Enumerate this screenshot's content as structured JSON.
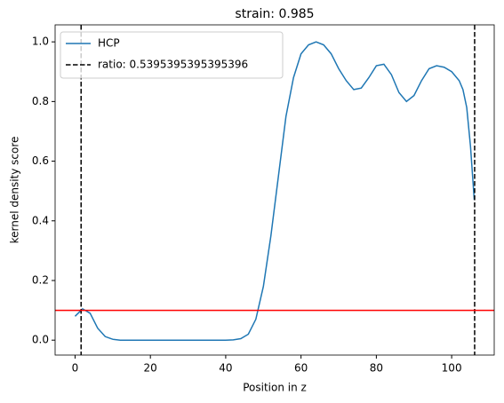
{
  "chart_data": {
    "type": "line",
    "title": "strain: 0.985",
    "xlabel": "Position in z",
    "ylabel": "kernel density score",
    "xlim": [
      -5.3,
      111.3
    ],
    "ylim": [
      -0.05,
      1.057
    ],
    "xticks": [
      0,
      20,
      40,
      60,
      80,
      100
    ],
    "yticks": [
      {
        "value": 0,
        "label": "0.0"
      },
      {
        "value": 0.2,
        "label": "0.2"
      },
      {
        "value": 0.4,
        "label": "0.4"
      },
      {
        "value": 0.6,
        "label": "0.6"
      },
      {
        "value": 0.8,
        "label": "0.8"
      },
      {
        "value": 1,
        "label": "1.0"
      }
    ],
    "series": [
      {
        "name": "HCP",
        "color": "#1f77b4",
        "x": [
          0,
          2,
          4,
          6,
          8,
          10,
          12,
          14,
          16,
          18,
          20,
          22,
          24,
          26,
          28,
          30,
          32,
          34,
          36,
          38,
          40,
          42,
          44,
          46,
          48,
          50,
          52,
          54,
          56,
          58,
          60,
          62,
          64,
          66,
          68,
          70,
          72,
          74,
          76,
          78,
          80,
          82,
          84,
          86,
          88,
          90,
          92,
          94,
          96,
          98,
          100,
          102,
          103,
          104,
          105,
          106
        ],
        "values": [
          0.08,
          0.105,
          0.09,
          0.04,
          0.012,
          0.003,
          0,
          0,
          0,
          0,
          0,
          0,
          0,
          0,
          0,
          0,
          0,
          0,
          0,
          0,
          0,
          0.001,
          0.005,
          0.02,
          0.07,
          0.18,
          0.35,
          0.55,
          0.75,
          0.88,
          0.96,
          0.99,
          1.0,
          0.99,
          0.96,
          0.91,
          0.87,
          0.84,
          0.845,
          0.88,
          0.92,
          0.925,
          0.89,
          0.83,
          0.8,
          0.82,
          0.87,
          0.91,
          0.92,
          0.915,
          0.9,
          0.87,
          0.84,
          0.78,
          0.65,
          0.47
        ]
      }
    ],
    "vlines": {
      "name": "ratio: 0.5395395395395396",
      "color": "#000000",
      "x": [
        1.6,
        106.1
      ]
    },
    "hline": {
      "value": 0.1,
      "color": "#ff0000"
    },
    "legend": "upper left"
  }
}
